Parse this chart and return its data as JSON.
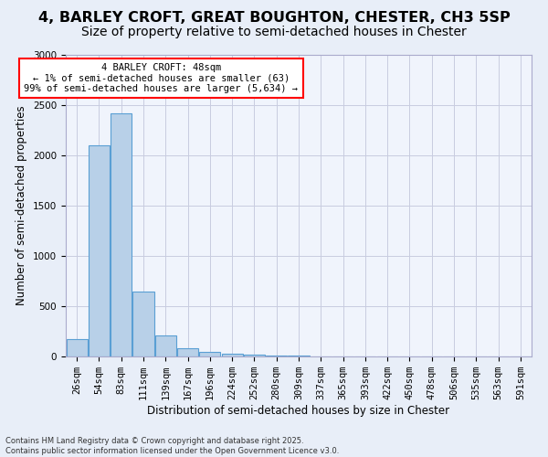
{
  "title": "4, BARLEY CROFT, GREAT BOUGHTON, CHESTER, CH3 5SP",
  "subtitle": "Size of property relative to semi-detached houses in Chester",
  "xlabel": "Distribution of semi-detached houses by size in Chester",
  "ylabel": "Number of semi-detached properties",
  "annotation_title": "4 BARLEY CROFT: 48sqm",
  "annotation_line1": "← 1% of semi-detached houses are smaller (63)",
  "annotation_line2": "99% of semi-detached houses are larger (5,634) →",
  "footer_line1": "Contains HM Land Registry data © Crown copyright and database right 2025.",
  "footer_line2": "Contains public sector information licensed under the Open Government Licence v3.0.",
  "categories": [
    "26sqm",
    "54sqm",
    "83sqm",
    "111sqm",
    "139sqm",
    "167sqm",
    "196sqm",
    "224sqm",
    "252sqm",
    "280sqm",
    "309sqm",
    "337sqm",
    "365sqm",
    "393sqm",
    "422sqm",
    "450sqm",
    "478sqm",
    "506sqm",
    "535sqm",
    "563sqm",
    "591sqm"
  ],
  "values": [
    175,
    2100,
    2420,
    650,
    210,
    80,
    45,
    30,
    20,
    10,
    5,
    0,
    0,
    0,
    0,
    0,
    0,
    0,
    0,
    0,
    0
  ],
  "bar_color": "#b8d0e8",
  "bar_edge_color": "#5a9fd4",
  "highlight_bin": 1,
  "ylim": [
    0,
    3000
  ],
  "yticks": [
    0,
    500,
    1000,
    1500,
    2000,
    2500,
    3000
  ],
  "bg_color": "#e8eef8",
  "plot_bg_color": "#f0f4fc",
  "grid_color": "#c8cce0",
  "title_fontsize": 11.5,
  "subtitle_fontsize": 10,
  "axis_label_fontsize": 8.5,
  "tick_fontsize": 7.5,
  "footer_fontsize": 6
}
